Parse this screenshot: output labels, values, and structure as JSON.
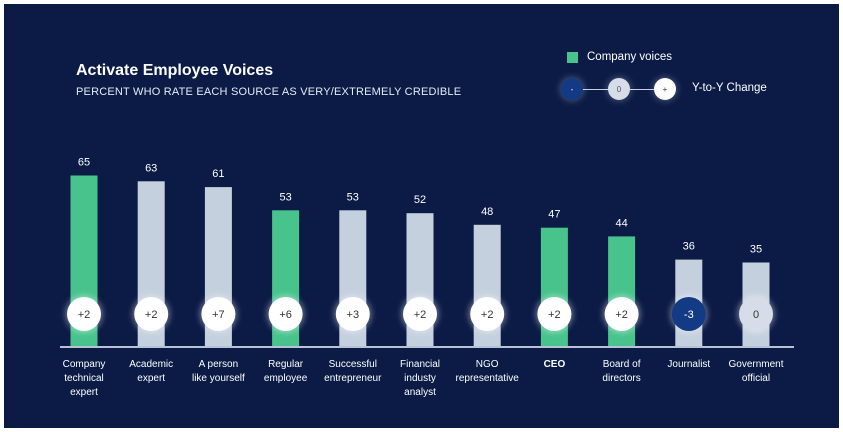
{
  "chart_data": {
    "type": "bar",
    "title": "Activate Employee Voices",
    "subtitle": "PERCENT WHO RATE EACH SOURCE AS VERY/EXTREMELY CREDIBLE",
    "categories": [
      [
        "Company",
        "technical",
        "expert"
      ],
      [
        "Academic",
        "expert"
      ],
      [
        "A person",
        "like yourself"
      ],
      [
        "Regular",
        "employee"
      ],
      [
        "Successful",
        "entrepreneur"
      ],
      [
        "Financial",
        "industy",
        "analyst"
      ],
      [
        "NGO",
        "representative"
      ],
      [
        "CEO"
      ],
      [
        "Board of",
        "directors"
      ],
      [
        "Journalist"
      ],
      [
        "Government",
        "official"
      ]
    ],
    "values": [
      65,
      63,
      61,
      53,
      53,
      52,
      48,
      47,
      44,
      36,
      35
    ],
    "company_voice": [
      true,
      false,
      false,
      true,
      false,
      false,
      false,
      true,
      true,
      false,
      false
    ],
    "change": [
      "+2",
      "+2",
      "+7",
      "+6",
      "+3",
      "+2",
      "+2",
      "+2",
      "+2",
      "-3",
      "0"
    ],
    "bold_category": "CEO",
    "legend": {
      "company_voices": "Company voices",
      "change_label": "Y-to-Y Change",
      "minus": "-",
      "zero": "0",
      "plus": "+"
    },
    "colors": {
      "company": "#48c38c",
      "other": "#c5d0de",
      "negative": "#123a85",
      "neutral": "#d6dde8",
      "positive": "#ffffff",
      "background": "#0b1b46"
    }
  }
}
